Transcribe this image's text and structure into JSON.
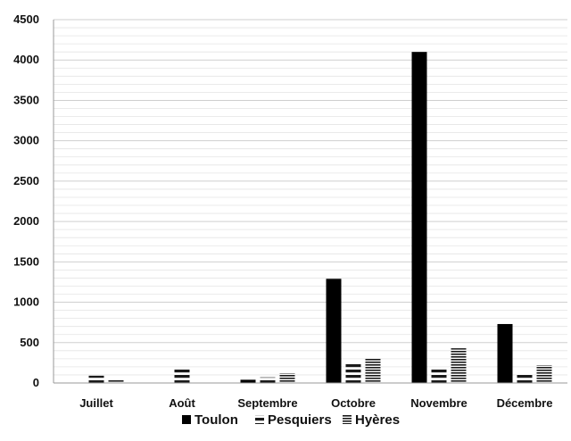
{
  "chart_data": {
    "type": "bar",
    "categories": [
      "Juillet",
      "Août",
      "Septembre",
      "Octobre",
      "Novembre",
      "Décembre"
    ],
    "series": [
      {
        "name": "Toulon",
        "values": [
          0,
          0,
          40,
          1290,
          4100,
          730
        ],
        "pattern": "solid"
      },
      {
        "name": "Pesquiers",
        "values": [
          90,
          170,
          70,
          240,
          170,
          110
        ],
        "pattern": "stripes-wide"
      },
      {
        "name": "Hyères",
        "values": [
          40,
          0,
          120,
          300,
          430,
          220
        ],
        "pattern": "stripes-fine"
      }
    ],
    "yticks": [
      "0",
      "500",
      "1000",
      "1500",
      "2000",
      "2500",
      "3000",
      "3500",
      "4000",
      "4500"
    ],
    "ylim": [
      0,
      4500
    ],
    "grid": true,
    "legend_position": "bottom",
    "colors": {
      "bar": "#000000",
      "grid": "#cfcfcf",
      "axis": "#999999"
    }
  }
}
